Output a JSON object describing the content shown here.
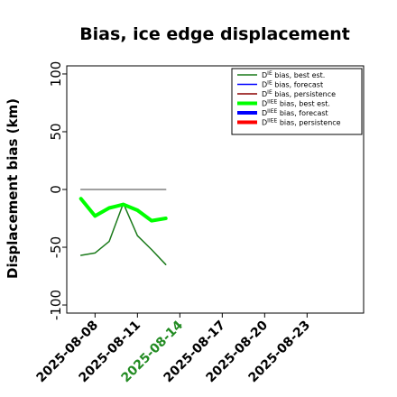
{
  "chart_data": {
    "type": "line",
    "title": "Bias, ice edge displacement",
    "xlabel": "",
    "ylabel": "Displacement bias (km)",
    "ylim": [
      -107,
      107
    ],
    "xlim": [
      "2025-08-06",
      "2025-08-27"
    ],
    "yticks": [
      100,
      50,
      0,
      -50,
      -100
    ],
    "xticks": [
      "2025-08-08",
      "2025-08-11",
      "2025-08-14",
      "2025-08-17",
      "2025-08-20",
      "2025-08-23"
    ],
    "highlight_tick": "2025-08-14",
    "highlight_color": "#228b22",
    "grid": false,
    "legend_position": "top-right",
    "legend": [
      {
        "base": "D",
        "sup": "IE",
        "text": " bias, best est.",
        "color": "#1a7a1a",
        "width": 1.5
      },
      {
        "base": "D",
        "sup": "IE",
        "text": " bias, forecast",
        "color": "#0000ff",
        "width": 1.5
      },
      {
        "base": "D",
        "sup": "IE",
        "text": " bias, persistence",
        "color": "#8b0000",
        "width": 1.5
      },
      {
        "base": "D",
        "sup": "IIEE",
        "text": " bias, best est.",
        "color": "#00ff00",
        "width": 4
      },
      {
        "base": "D",
        "sup": "IIEE",
        "text": " bias, forecast",
        "color": "#0000ff",
        "width": 4
      },
      {
        "base": "D",
        "sup": "IIEE",
        "text": " bias, persistence",
        "color": "#ff0000",
        "width": 4
      }
    ],
    "series": [
      {
        "color": "#1a7a1a",
        "width": 1.5,
        "x": [
          "2025-08-07",
          "2025-08-08",
          "2025-08-09",
          "2025-08-10",
          "2025-08-11",
          "2025-08-12",
          "2025-08-13"
        ],
        "y": [
          -57,
          -55,
          -45,
          -12,
          -40,
          -52,
          -65
        ]
      },
      {
        "color": "#808080",
        "width": 1.5,
        "x": [
          "2025-08-07",
          "2025-08-13"
        ],
        "y": [
          0,
          0
        ]
      },
      {
        "color": "#00ff00",
        "width": 4,
        "x": [
          "2025-08-07",
          "2025-08-08",
          "2025-08-09",
          "2025-08-10",
          "2025-08-11",
          "2025-08-12",
          "2025-08-13"
        ],
        "y": [
          -8,
          -23,
          -16,
          -13,
          -18,
          -27,
          -25
        ]
      }
    ]
  }
}
